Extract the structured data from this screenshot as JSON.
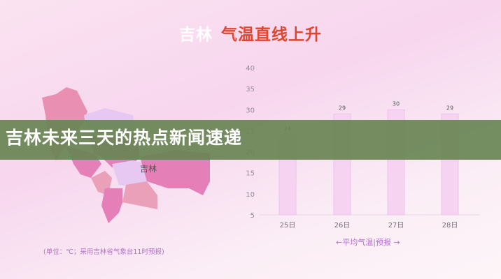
{
  "header": {
    "title_region": "吉林",
    "title_main": "气温直线上升"
  },
  "map": {
    "label": "吉林",
    "colors": [
      "#e98fb2",
      "#eeb1d8",
      "#e9a0b8",
      "#e47fb8",
      "#e6c8f2"
    ]
  },
  "note": "(单位：℃；采用吉林省气象台11时预报)",
  "banner": {
    "text": "吉林未来三天的热点新闻速递",
    "color": "#688454"
  },
  "chart_data": {
    "type": "bar",
    "categories": [
      "25日",
      "26日",
      "27日",
      "28日"
    ],
    "values": [
      24,
      29,
      30,
      29
    ],
    "ylim": [
      5,
      40
    ],
    "yticks": [
      5,
      10,
      15,
      20,
      25,
      30,
      35,
      40
    ],
    "legend": "←平均气温|预报 →",
    "bar_color": "#f5d3f1"
  }
}
